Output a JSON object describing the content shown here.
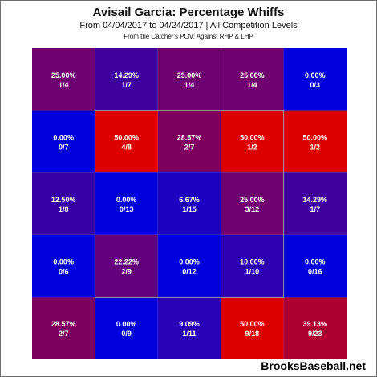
{
  "chart_data": {
    "type": "heatmap",
    "title": "Avisail Garcia: Percentage Whiffs",
    "subtitle": "From 04/04/2017 to 04/24/2017 | All Competition Levels",
    "note": "From the Catcher's POV:  Against RHP & LHP",
    "rows": 5,
    "cols": 5,
    "cells": [
      [
        {
          "pct": "25.00%",
          "frac": "1/4",
          "value": 25.0
        },
        {
          "pct": "14.29%",
          "frac": "1/7",
          "value": 14.29
        },
        {
          "pct": "25.00%",
          "frac": "1/4",
          "value": 25.0
        },
        {
          "pct": "25.00%",
          "frac": "1/4",
          "value": 25.0
        },
        {
          "pct": "0.00%",
          "frac": "0/3",
          "value": 0.0
        }
      ],
      [
        {
          "pct": "0.00%",
          "frac": "0/7",
          "value": 0.0
        },
        {
          "pct": "50.00%",
          "frac": "4/8",
          "value": 50.0
        },
        {
          "pct": "28.57%",
          "frac": "2/7",
          "value": 28.57
        },
        {
          "pct": "50.00%",
          "frac": "1/2",
          "value": 50.0
        },
        {
          "pct": "50.00%",
          "frac": "1/2",
          "value": 50.0
        }
      ],
      [
        {
          "pct": "12.50%",
          "frac": "1/8",
          "value": 12.5
        },
        {
          "pct": "0.00%",
          "frac": "0/13",
          "value": 0.0
        },
        {
          "pct": "6.67%",
          "frac": "1/15",
          "value": 6.67
        },
        {
          "pct": "25.00%",
          "frac": "3/12",
          "value": 25.0
        },
        {
          "pct": "14.29%",
          "frac": "1/7",
          "value": 14.29
        }
      ],
      [
        {
          "pct": "0.00%",
          "frac": "0/6",
          "value": 0.0
        },
        {
          "pct": "22.22%",
          "frac": "2/9",
          "value": 22.22
        },
        {
          "pct": "0.00%",
          "frac": "0/12",
          "value": 0.0
        },
        {
          "pct": "10.00%",
          "frac": "1/10",
          "value": 10.0
        },
        {
          "pct": "0.00%",
          "frac": "0/16",
          "value": 0.0
        }
      ],
      [
        {
          "pct": "28.57%",
          "frac": "2/7",
          "value": 28.57
        },
        {
          "pct": "0.00%",
          "frac": "0/9",
          "value": 0.0
        },
        {
          "pct": "9.09%",
          "frac": "1/11",
          "value": 9.09
        },
        {
          "pct": "50.00%",
          "frac": "9/18",
          "value": 50.0
        },
        {
          "pct": "39.13%",
          "frac": "9/23",
          "value": 39.13
        }
      ]
    ],
    "color_scale": {
      "min": 0,
      "max": 50,
      "low_color": "#0000dd",
      "high_color": "#dd0000"
    },
    "strike_zone": {
      "row_start": 1,
      "row_end": 3,
      "col_start": 1,
      "col_end": 3
    },
    "grid": false
  },
  "brand": "BrooksBaseball.net"
}
